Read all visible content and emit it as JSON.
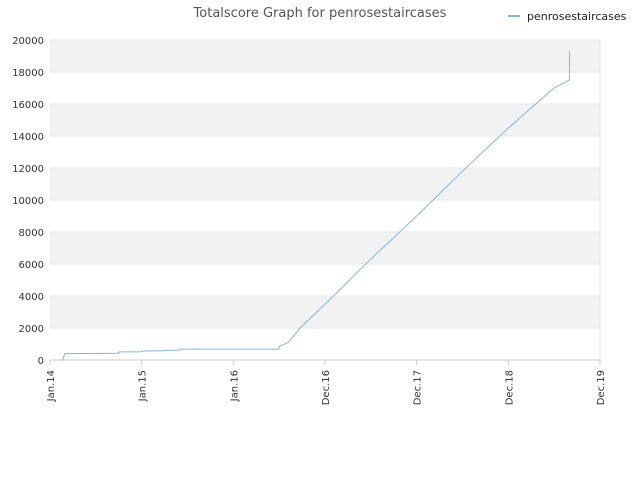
{
  "chart_data": {
    "type": "line",
    "title": "Totalscore Graph for penrosestaircases",
    "xlabel": "",
    "ylabel": "",
    "x_ticks": [
      "Jan.14",
      "Jan.15",
      "Jan.16",
      "Dec.16",
      "Dec.17",
      "Dec.18",
      "Dec.19"
    ],
    "y_ticks": [
      "0",
      "2000",
      "4000",
      "6000",
      "8000",
      "10000",
      "12000",
      "14000",
      "16000",
      "18000",
      "20000"
    ],
    "ylim": [
      0,
      20000
    ],
    "grid": "horizontal alternating bands",
    "legend_position": "top-right",
    "series": [
      {
        "name": "penrosestaircases",
        "color": "#7cb5ec",
        "x": [
          "2014-02-15",
          "2014-02-20",
          "2014-03-01",
          "2014-10-01",
          "2014-10-02",
          "2015-01-01",
          "2015-01-02",
          "2015-04-01",
          "2015-04-02",
          "2015-06-01",
          "2015-06-02",
          "2016-06-15",
          "2016-06-20",
          "2016-07-01",
          "2016-07-20",
          "2016-09-01",
          "2016-12-15",
          "2017-06-01",
          "2017-12-01",
          "2018-06-01",
          "2018-12-01",
          "2019-06-01",
          "2019-08-01",
          "2019-08-02"
        ],
        "values": [
          0,
          0,
          400,
          420,
          500,
          520,
          560,
          580,
          600,
          620,
          680,
          680,
          900,
          950,
          1100,
          2000,
          3700,
          6300,
          9000,
          11800,
          14500,
          17000,
          17500,
          19300
        ]
      }
    ]
  }
}
